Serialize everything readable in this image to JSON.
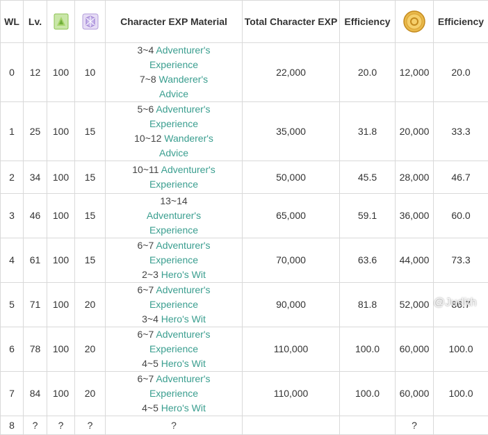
{
  "headers": {
    "wl": "WL",
    "lv": "Lv.",
    "resin_icon": "green-resin-icon",
    "condensed_icon": "purple-condensed-resin-icon",
    "material": "Character EXP Material",
    "total_exp": "Total Character EXP",
    "efficiency1": "Efficiency",
    "mora_icon": "mora-coin-icon",
    "efficiency2": "Efficiency"
  },
  "rows": [
    {
      "wl": "0",
      "lv": "12",
      "resin": "100",
      "condensed": "10",
      "materials": [
        {
          "qty": "3~4",
          "name": "Adventurer's Experience"
        },
        {
          "qty": "7~8",
          "name": "Wanderer's Advice"
        }
      ],
      "total_exp": "22,000",
      "efficiency1": "20.0",
      "mora": "12,000",
      "efficiency2": "20.0"
    },
    {
      "wl": "1",
      "lv": "25",
      "resin": "100",
      "condensed": "15",
      "materials": [
        {
          "qty": "5~6",
          "name": "Adventurer's Experience"
        },
        {
          "qty": "10~12",
          "name": "Wanderer's Advice"
        }
      ],
      "total_exp": "35,000",
      "efficiency1": "31.8",
      "mora": "20,000",
      "efficiency2": "33.3"
    },
    {
      "wl": "2",
      "lv": "34",
      "resin": "100",
      "condensed": "15",
      "materials": [
        {
          "qty": "10~11",
          "name": "Adventurer's Experience"
        }
      ],
      "total_exp": "50,000",
      "efficiency1": "45.5",
      "mora": "28,000",
      "efficiency2": "46.7"
    },
    {
      "wl": "3",
      "lv": "46",
      "resin": "100",
      "condensed": "15",
      "materials": [
        {
          "qty": "13~14",
          "name": "Adventurer's Experience"
        }
      ],
      "total_exp": "65,000",
      "efficiency1": "59.1",
      "mora": "36,000",
      "efficiency2": "60.0"
    },
    {
      "wl": "4",
      "lv": "61",
      "resin": "100",
      "condensed": "15",
      "materials": [
        {
          "qty": "6~7",
          "name": "Adventurer's Experience"
        },
        {
          "qty": "2~3",
          "name": "Hero's Wit"
        }
      ],
      "total_exp": "70,000",
      "efficiency1": "63.6",
      "mora": "44,000",
      "efficiency2": "73.3"
    },
    {
      "wl": "5",
      "lv": "71",
      "resin": "100",
      "condensed": "20",
      "materials": [
        {
          "qty": "6~7",
          "name": "Adventurer's Experience"
        },
        {
          "qty": "3~4",
          "name": "Hero's Wit"
        }
      ],
      "total_exp": "90,000",
      "efficiency1": "81.8",
      "mora": "52,000",
      "efficiency2": "86.7"
    },
    {
      "wl": "6",
      "lv": "78",
      "resin": "100",
      "condensed": "20",
      "materials": [
        {
          "qty": "6~7",
          "name": "Adventurer's Experience"
        },
        {
          "qty": "4~5",
          "name": "Hero's Wit"
        }
      ],
      "total_exp": "110,000",
      "efficiency1": "100.0",
      "mora": "60,000",
      "efficiency2": "100.0"
    },
    {
      "wl": "7",
      "lv": "84",
      "resin": "100",
      "condensed": "20",
      "materials": [
        {
          "qty": "6~7",
          "name": "Adventurer's Experience"
        },
        {
          "qty": "4~5",
          "name": "Hero's Wit"
        }
      ],
      "total_exp": "110,000",
      "efficiency1": "100.0",
      "mora": "60,000",
      "efficiency2": "100.0"
    },
    {
      "wl": "8",
      "lv": "?",
      "resin": "?",
      "condensed": "?",
      "materials": [
        {
          "qty": "?",
          "name": ""
        }
      ],
      "total_exp": "",
      "efficiency1": "",
      "mora": "?",
      "efficiency2": ""
    }
  ],
  "watermark": "@Judith",
  "colors": {
    "link": "#3a9e8f",
    "border": "#d9d9d9",
    "text": "#333333"
  }
}
